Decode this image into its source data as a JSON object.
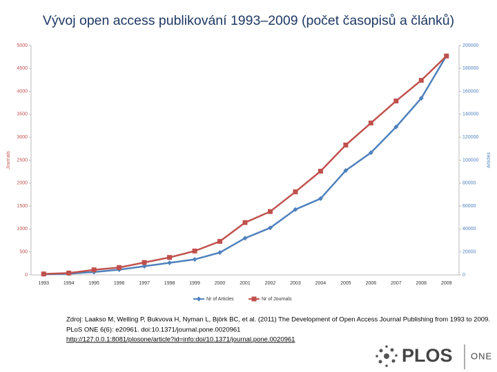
{
  "chart_data": {
    "type": "line",
    "title": "Vývoj open access publikování 1993–2009 (počet časopisů a článků)",
    "categories": [
      "1993",
      "1994",
      "1995",
      "1996",
      "1997",
      "1998",
      "1999",
      "2000",
      "2001",
      "2002",
      "2003",
      "2004",
      "2005",
      "2006",
      "2007",
      "2008",
      "2009"
    ],
    "series": [
      {
        "name": "Nr of Articles",
        "color": "#4f81bd",
        "axis": "y2",
        "marker": "diamond",
        "values": [
          500,
          1000,
          2500,
          4500,
          7500,
          10500,
          13500,
          19500,
          32000,
          41000,
          57000,
          66500,
          91000,
          106500,
          129000,
          154000,
          191000
        ]
      },
      {
        "name": "Nr of Journals",
        "color": "#c0504d",
        "axis": "y",
        "marker": "square",
        "values": [
          20,
          40,
          110,
          160,
          270,
          380,
          520,
          730,
          1140,
          1380,
          1810,
          2260,
          2830,
          3310,
          3790,
          4240,
          4770
        ]
      }
    ],
    "ylabel": "Journals",
    "y2label": "Articles",
    "ylim": [
      0,
      5000
    ],
    "yticks": [
      0,
      500,
      1000,
      1500,
      2000,
      2500,
      3000,
      3500,
      4000,
      4500,
      5000
    ],
    "y2lim": [
      0,
      200000
    ],
    "y2ticks": [
      0,
      20000,
      40000,
      60000,
      80000,
      100000,
      120000,
      140000,
      160000,
      180000,
      200000
    ],
    "grid": false,
    "legend": "bottom"
  },
  "source": {
    "lines": [
      "Zdroj: Laakso M, Welling P, Bukvova H, Nyman L, Björk BC, et al. (2011) The Development of Open Access Journal Publishing from 1993 to 2009.",
      "PLoS ONE 6(6): e20961. doi:10.1371/journal.pone.0020961"
    ],
    "link": "http://127.0.0.1:8081/plosone/article?id=info:doi/10.1371/journal.pone.0020961"
  },
  "logo": {
    "name": "PLOS",
    "product": "ONE"
  }
}
